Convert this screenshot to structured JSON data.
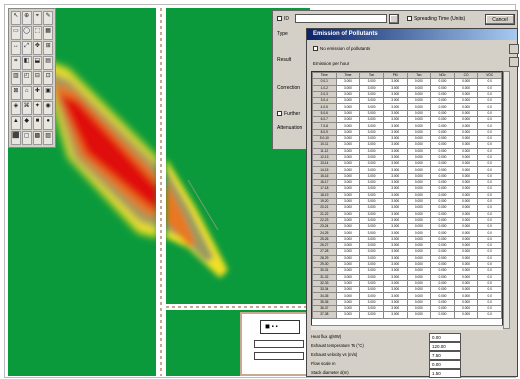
{
  "palette": {
    "tools": [
      "↖",
      "⊕",
      "⌖",
      "✎",
      "▭",
      "◯",
      "⬚",
      "▦",
      "↔",
      "⤢",
      "✥",
      "⊞",
      "⌗",
      "◧",
      "⬓",
      "▤",
      "▥",
      "◰",
      "⊟",
      "⊡",
      "⊠",
      "⌂",
      "✚",
      "▣",
      "◈",
      "⌘",
      "✦",
      "◉",
      "▲",
      "◆",
      "■",
      "●",
      "⬛",
      "▢",
      "▩",
      "▨"
    ]
  },
  "back_dialog": {
    "id_label": "ID",
    "id_value": "",
    "spreading_label": "Spreading Time (Units)",
    "cancel_label": "Cancel",
    "type_label": "Type",
    "result_label": "Result",
    "correction_label": "Correction",
    "further_label": "Further",
    "attenuation_label": "Attenuation"
  },
  "dialog": {
    "title": "Emission of Pollutants",
    "no_emission_label": "No emission of pollutants",
    "emission_per_hour_label": "Emission per hour",
    "columns": [
      "Time",
      "Time",
      "Ton",
      "PM",
      "Ton",
      "NOx",
      "CO",
      "VOC"
    ],
    "rows": [
      [
        "0.0-1",
        "3.000",
        "3.000",
        "3.000",
        "0.000",
        "0.000",
        "0.000",
        "0.0"
      ],
      [
        "1.0-2",
        "3.000",
        "3.000",
        "3.000",
        "0.000",
        "0.000",
        "0.000",
        "0.0"
      ],
      [
        "2.0-3",
        "3.000",
        "3.000",
        "3.000",
        "0.000",
        "0.000",
        "0.000",
        "0.0"
      ],
      [
        "3.0-4",
        "3.000",
        "3.000",
        "3.000",
        "0.000",
        "0.000",
        "0.000",
        "0.0"
      ],
      [
        "4.0-5",
        "3.000",
        "3.000",
        "3.000",
        "0.000",
        "0.000",
        "0.000",
        "0.0"
      ],
      [
        "5.0-6",
        "3.000",
        "3.000",
        "3.000",
        "0.000",
        "0.000",
        "0.000",
        "0.0"
      ],
      [
        "6.0-7",
        "3.000",
        "3.000",
        "3.000",
        "0.000",
        "0.000",
        "0.000",
        "0.0"
      ],
      [
        "7.0-8",
        "3.000",
        "3.000",
        "3.000",
        "0.000",
        "0.000",
        "0.000",
        "0.0"
      ],
      [
        "8.0-9",
        "3.000",
        "3.000",
        "3.000",
        "0.000",
        "0.000",
        "0.000",
        "0.0"
      ],
      [
        "9.0-10",
        "3.000",
        "3.000",
        "3.000",
        "0.000",
        "0.000",
        "0.000",
        "0.0"
      ],
      [
        "10-11",
        "3.000",
        "3.000",
        "3.000",
        "0.000",
        "0.000",
        "0.000",
        "0.0"
      ],
      [
        "11-12",
        "3.000",
        "3.000",
        "3.000",
        "0.000",
        "0.000",
        "0.000",
        "0.0"
      ],
      [
        "12-13",
        "3.000",
        "3.000",
        "3.000",
        "0.000",
        "0.000",
        "0.000",
        "0.0"
      ],
      [
        "13-14",
        "3.000",
        "3.000",
        "3.000",
        "0.000",
        "0.000",
        "0.000",
        "0.0"
      ],
      [
        "14-15",
        "3.000",
        "3.000",
        "3.000",
        "0.000",
        "0.000",
        "0.000",
        "0.0"
      ],
      [
        "15-16",
        "3.000",
        "3.000",
        "3.000",
        "0.000",
        "0.000",
        "0.000",
        "0.0"
      ],
      [
        "16-17",
        "3.000",
        "3.000",
        "3.000",
        "0.000",
        "0.000",
        "0.000",
        "0.0"
      ],
      [
        "17-18",
        "3.000",
        "3.000",
        "3.000",
        "0.000",
        "0.000",
        "0.000",
        "0.0"
      ],
      [
        "18-19",
        "3.000",
        "3.000",
        "3.000",
        "0.000",
        "0.000",
        "0.000",
        "0.0"
      ],
      [
        "19-20",
        "3.000",
        "3.000",
        "3.000",
        "0.000",
        "0.000",
        "0.000",
        "0.0"
      ],
      [
        "20-21",
        "3.000",
        "3.000",
        "3.000",
        "0.000",
        "0.000",
        "0.000",
        "0.0"
      ],
      [
        "21-22",
        "3.000",
        "3.000",
        "3.000",
        "0.000",
        "0.000",
        "0.000",
        "0.0"
      ],
      [
        "22-23",
        "3.000",
        "3.000",
        "3.000",
        "0.000",
        "0.000",
        "0.000",
        "0.0"
      ],
      [
        "23-24",
        "3.000",
        "3.000",
        "3.000",
        "0.000",
        "0.000",
        "0.000",
        "0.0"
      ],
      [
        "24-25",
        "3.000",
        "3.000",
        "3.000",
        "0.000",
        "0.000",
        "0.000",
        "0.0"
      ],
      [
        "25-26",
        "3.000",
        "3.000",
        "3.000",
        "0.000",
        "0.000",
        "0.000",
        "0.0"
      ],
      [
        "26-27",
        "3.000",
        "3.000",
        "3.000",
        "0.000",
        "0.000",
        "0.000",
        "0.0"
      ],
      [
        "27-28",
        "3.000",
        "3.000",
        "3.000",
        "0.000",
        "0.000",
        "0.000",
        "0.0"
      ],
      [
        "28-29",
        "3.000",
        "3.000",
        "3.000",
        "0.000",
        "0.000",
        "0.000",
        "0.0"
      ],
      [
        "29-30",
        "3.000",
        "3.000",
        "3.000",
        "0.000",
        "0.000",
        "0.000",
        "0.0"
      ],
      [
        "30-31",
        "3.000",
        "3.000",
        "3.000",
        "0.000",
        "0.000",
        "0.000",
        "0.0"
      ],
      [
        "31-32",
        "3.000",
        "3.000",
        "3.000",
        "0.000",
        "0.000",
        "0.000",
        "0.0"
      ],
      [
        "32-33",
        "3.000",
        "3.000",
        "3.000",
        "0.000",
        "0.000",
        "0.000",
        "0.0"
      ],
      [
        "33-34",
        "3.000",
        "3.000",
        "3.000",
        "0.000",
        "0.000",
        "0.000",
        "0.0"
      ],
      [
        "34-35",
        "3.000",
        "3.000",
        "3.000",
        "0.000",
        "0.000",
        "0.000",
        "0.0"
      ],
      [
        "35-36",
        "3.000",
        "3.000",
        "3.000",
        "0.000",
        "0.000",
        "0.000",
        "0.0"
      ],
      [
        "36-37",
        "3.000",
        "3.000",
        "3.000",
        "0.000",
        "0.000",
        "0.000",
        "0.0"
      ],
      [
        "37-38",
        "3.000",
        "3.000",
        "3.000",
        "0.000",
        "0.000",
        "0.000",
        "0.0"
      ]
    ],
    "params": [
      {
        "label": "Heat flux q(MW)",
        "value": "0.00"
      },
      {
        "label": "Exhaust temperature Ts (°C)",
        "value": "120.00"
      },
      {
        "label": "Exhaust velocity vs (m/s)",
        "value": "7.50"
      },
      {
        "label": "Flow scale m",
        "value": "0.00"
      },
      {
        "label": "Stack diameter d(m)",
        "value": "1.50"
      }
    ]
  },
  "inset": {
    "selector_text": "◼ ▪ ▪"
  },
  "colors": {
    "map_green": "#0a9a3c",
    "plume_red": "#e01010",
    "plume_yellow": "#f0e020",
    "title_blue": "#0a246a"
  }
}
